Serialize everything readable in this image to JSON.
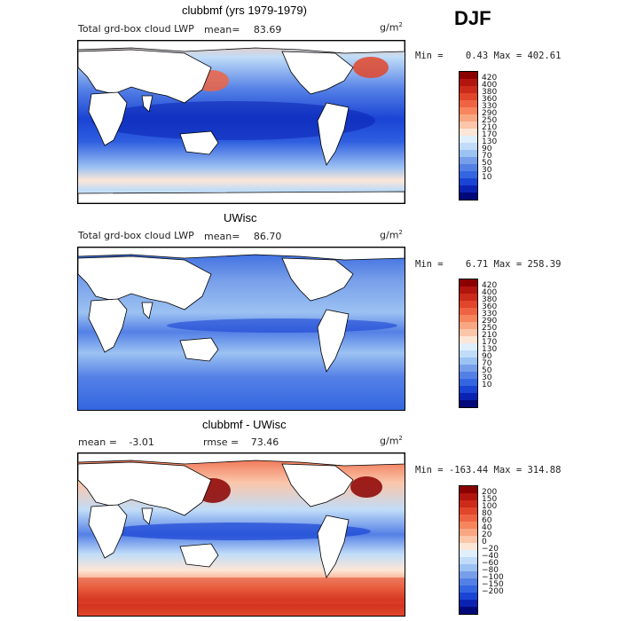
{
  "season": "DJF",
  "units_text": "g/m",
  "units_exp": "2",
  "panels": [
    {
      "title": "clubbmf (yrs 1979-1979)",
      "subtitle": "Total grd-box cloud LWP",
      "stat_label": "mean=",
      "stat_value": "83.69",
      "min_label": "Min =",
      "min_value": "0.43",
      "max_label": "Max =",
      "max_value": "402.61",
      "colorbar": {
        "colors": [
          "#8b0000",
          "#b2150e",
          "#cc2a1a",
          "#e0462a",
          "#ee6443",
          "#f6855e",
          "#f9a682",
          "#fbc6aa",
          "#fde6d6",
          "#dfeffc",
          "#c0dcf8",
          "#9cc2f2",
          "#779ee9",
          "#5480e6",
          "#3366e0",
          "#1a44d4",
          "#0a22b2",
          "#00087a"
        ],
        "ticks": [
          "420",
          "400",
          "380",
          "360",
          "330",
          "290",
          "250",
          "210",
          "170",
          "130",
          "90",
          "70",
          "50",
          "30",
          "10"
        ]
      }
    },
    {
      "title": "UWisc",
      "subtitle": "Total grd-box cloud LWP",
      "stat_label": "mean=",
      "stat_value": "86.70",
      "min_label": "Min =",
      "min_value": "6.71",
      "max_label": "Max =",
      "max_value": "258.39",
      "colorbar": {
        "colors": [
          "#8b0000",
          "#b2150e",
          "#cc2a1a",
          "#e0462a",
          "#ee6443",
          "#f6855e",
          "#f9a682",
          "#fbc6aa",
          "#fde6d6",
          "#dfeffc",
          "#c0dcf8",
          "#9cc2f2",
          "#779ee9",
          "#5480e6",
          "#3366e0",
          "#1a44d4",
          "#0a22b2",
          "#00087a"
        ],
        "ticks": [
          "420",
          "400",
          "380",
          "360",
          "330",
          "290",
          "250",
          "210",
          "170",
          "130",
          "90",
          "70",
          "50",
          "30",
          "10"
        ]
      }
    },
    {
      "title": "clubbmf - UWisc",
      "subtitle": "",
      "stat_label": "mean =",
      "stat_value": "-3.01",
      "rmse_label": "rmse =",
      "rmse_value": "73.46",
      "min_label": "Min =",
      "min_value": "-163.44",
      "max_label": "Max =",
      "max_value": "314.88",
      "colorbar": {
        "colors": [
          "#8b0000",
          "#b2150e",
          "#cc2a1a",
          "#e0462a",
          "#ee6443",
          "#f6855e",
          "#f9a682",
          "#fbc6aa",
          "#fde6d6",
          "#dfeffc",
          "#c0dcf8",
          "#9cc2f2",
          "#779ee9",
          "#5480e6",
          "#3366e0",
          "#1a44d4",
          "#0a22b2",
          "#00087a"
        ],
        "ticks": [
          "200",
          "150",
          "100",
          "80",
          "60",
          "40",
          "20",
          "0",
          "−20",
          "−40",
          "−60",
          "−80",
          "−100",
          "−150",
          "−200"
        ]
      }
    }
  ]
}
